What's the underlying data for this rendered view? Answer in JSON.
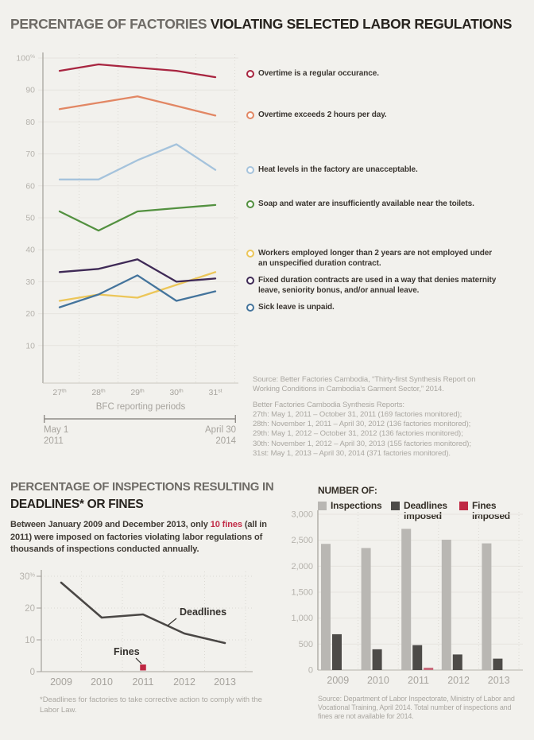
{
  "colors": {
    "background": "#f2f1ed",
    "title_light": "#6e6b66",
    "title_dark": "#27231e",
    "body_text": "#403b35",
    "muted_text": "#aaa7a1",
    "axis_label": "#a6a39d",
    "accent_red": "#c12a45"
  },
  "header": {
    "title_light": "PERCENTAGE OF FACTORIES",
    "title_bold": "VIOLATING SELECTED LABOR REGULATIONS"
  },
  "top_sources": {
    "para1_lines": [
      "Source: Better Factories Cambodia, “Thirty-first Synthesis Report on",
      "Working Conditions in Cambodia’s Garment Sector,” 2014."
    ],
    "para2_lines": [
      "Better Factories Cambodia Synthesis Reports:",
      "27th: May 1, 2011 – October 31, 2011 (169 factories monitored);",
      "28th: November 1, 2011 – April 30, 2012 (136 factories monitored);",
      "29th: May 1, 2012 – October 31, 2012 (136 factories monitored);",
      "30th: November 1, 2012 –  April 30, 2013 (155 factories monitored);",
      "31st: May 1, 2013 – April 30, 2014 (371 factories monitored)."
    ]
  },
  "bottom_left": {
    "title_line1": "PERCENTAGE OF INSPECTIONS RESULTING IN",
    "title_line2": "DEADLINES* OR FINES",
    "para_pre": "Between January 2009 and December 2013, only ",
    "para_highlight": "10 fines",
    "para_post": " (all in 2011) were imposed on factories violating labor regulations of thousands of inspections conducted annually.",
    "footnote_lines": [
      "*Deadlines for factories to take corrective action to comply with the",
      "Labor Law."
    ]
  },
  "bottom_right": {
    "source_lines": [
      "Source: Department of Labor Inspectorate, Ministry of Labor and",
      "Vocational Training, April 2014. Total number of inspections and",
      "fines are not available for 2014."
    ]
  },
  "chart_data": [
    {
      "id": "violations",
      "type": "line",
      "title": "PERCENTAGE OF FACTORIES VIOLATING SELECTED LABOR REGULATIONS",
      "categories": [
        "27th",
        "28th",
        "29th",
        "30th",
        "31st"
      ],
      "categories_sup": [
        [
          "27",
          "th"
        ],
        [
          "28",
          "th"
        ],
        [
          "29",
          "th"
        ],
        [
          "30",
          "th"
        ],
        [
          "31",
          "st"
        ]
      ],
      "xlabel": "BFC reporting periods",
      "ylim": [
        0,
        100
      ],
      "yticks": [
        10,
        20,
        30,
        40,
        50,
        60,
        70,
        80,
        90,
        100
      ],
      "ytick_labels": [
        "10",
        "20",
        "30",
        "40",
        "50",
        "60",
        "70",
        "80",
        "90",
        "100"
      ],
      "ytick_top_suffix": "%",
      "grid": true,
      "legend_position": "right",
      "series": [
        {
          "name": "Overtime is a regular occurance.",
          "color": "#a82540",
          "values": [
            96,
            98,
            97,
            96,
            94
          ]
        },
        {
          "name": "Overtime exceeds 2 hours per day.",
          "color": "#e28764",
          "values": [
            84,
            86,
            88,
            85,
            82
          ]
        },
        {
          "name": "Heat levels in the factory are unacceptable.",
          "color": "#a5c3dc",
          "values": [
            62,
            62,
            68,
            73,
            65
          ]
        },
        {
          "name": "Soap and water are insufficiently available near the toilets.",
          "color": "#539140",
          "values": [
            52,
            46,
            52,
            53,
            54
          ]
        },
        {
          "name": "Workers employed longer than 2 years are not employed under an unspecified duration contract.",
          "color": "#ecc659",
          "values": [
            24,
            26,
            25,
            29,
            33
          ]
        },
        {
          "name": "Fixed duration contracts are used in a way that denies maternity leave, seniority bonus, and/or annual leave.",
          "color": "#3f2a56",
          "values": [
            33,
            34,
            37,
            30,
            31
          ]
        },
        {
          "name": "Sick leave is unpaid.",
          "color": "#44749c",
          "values": [
            22,
            26,
            32,
            24,
            27
          ]
        }
      ],
      "timeline": {
        "start_lines": [
          "May 1",
          "2011"
        ],
        "end_lines": [
          "April 30",
          "2014"
        ]
      }
    },
    {
      "id": "inspection-results-percent",
      "type": "line",
      "title": "PERCENTAGE OF INSPECTIONS RESULTING IN DEADLINES* OR FINES",
      "categories": [
        "2009",
        "2010",
        "2011",
        "2012",
        "2013"
      ],
      "ylim": [
        0,
        30
      ],
      "yticks": [
        0,
        10,
        20,
        30
      ],
      "ytick_labels": [
        "0",
        "10",
        "20",
        "30"
      ],
      "ytick_top_suffix": "%",
      "grid": true,
      "series": [
        {
          "name": "Deadlines",
          "color": "#4a4745",
          "values": [
            28,
            17,
            18,
            12,
            9
          ]
        },
        {
          "name": "Fines",
          "color": "#bf2742",
          "marker": "square",
          "values": [
            null,
            null,
            1,
            null,
            null
          ]
        }
      ]
    },
    {
      "id": "inspection-counts",
      "type": "bar",
      "legend_title": "NUMBER OF:",
      "categories": [
        "2009",
        "2010",
        "2011",
        "2012",
        "2013"
      ],
      "ylim": [
        0,
        3000
      ],
      "yticks": [
        0,
        500,
        1000,
        1500,
        2000,
        2500,
        3000
      ],
      "ytick_labels": [
        "0",
        "500",
        "1,000",
        "1,500",
        "2,000",
        "2,500",
        "3,000"
      ],
      "grid": true,
      "series": [
        {
          "name": "Inspections",
          "color": "#b9b7b3",
          "values": [
            2430,
            2350,
            2720,
            2510,
            2440
          ]
        },
        {
          "name": "Deadlines imposed",
          "color": "#4d4b48",
          "values": [
            690,
            400,
            480,
            300,
            220
          ]
        },
        {
          "name": "Fines imposed",
          "color": "#bf2742",
          "bar_color_rendered": "#c96c7c",
          "values": [
            0,
            0,
            10,
            0,
            0
          ]
        }
      ]
    }
  ]
}
